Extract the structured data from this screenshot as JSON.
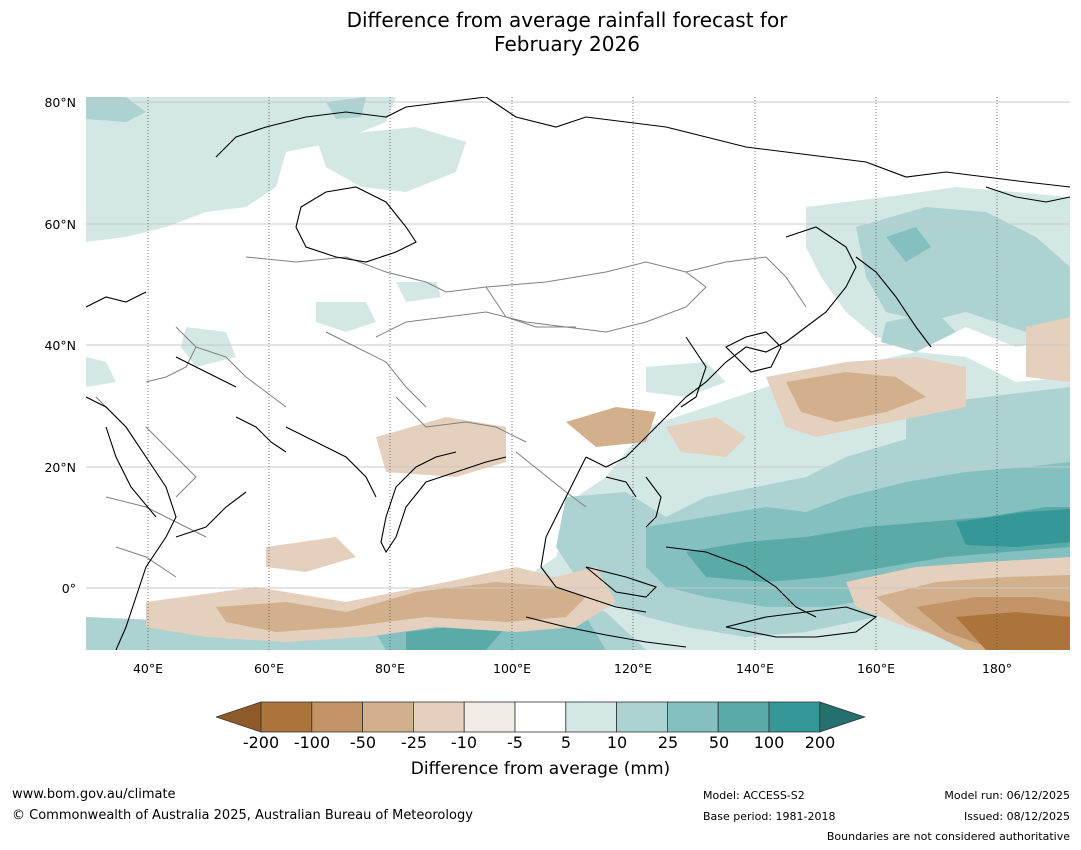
{
  "title_line1": "Difference from average rainfall forecast for",
  "title_line2": "February 2026",
  "lat_labels": [
    "80°N",
    "60°N",
    "40°N",
    "20°N",
    "0°"
  ],
  "lon_labels": [
    "40°E",
    "60°E",
    "80°E",
    "100°E",
    "120°E",
    "140°E",
    "160°E",
    "180°"
  ],
  "colorbar": {
    "ticks": [
      "-200",
      "-100",
      "-50",
      "-25",
      "-10",
      "-5",
      "5",
      "10",
      "25",
      "50",
      "100",
      "200"
    ],
    "colors": [
      "#8e5a2a",
      "#ac733a",
      "#c39468",
      "#d3b08c",
      "#e4d0bd",
      "#f1ece6",
      "#ffffff",
      "#d3e7e5",
      "#acd3d2",
      "#83c0bf",
      "#5aaaa8",
      "#339896",
      "#23706f"
    ],
    "label": "Difference from average (mm)"
  },
  "footer": {
    "website": "www.bom.gov.au/climate",
    "copyright": "© Commonwealth of Australia 2025, Australian Bureau of Meteorology",
    "model": "Model: ACCESS-S2",
    "base_period": "Base period: 1981-2018",
    "model_run": "Model run: 06/12/2025",
    "issued": "Issued: 08/12/2025",
    "disclaimer": "Boundaries are not considered authoritative"
  },
  "colors": {
    "dry_strong": "#ac733a",
    "dry_mid": "#c39468",
    "dry_light": "#d3b08c",
    "dry_faint": "#e4d0bd",
    "wet_faint": "#d3e7e5",
    "wet_light": "#acd3d2",
    "wet_mid": "#83c0bf",
    "wet_strong": "#5aaaa8",
    "wet_max": "#339896"
  }
}
